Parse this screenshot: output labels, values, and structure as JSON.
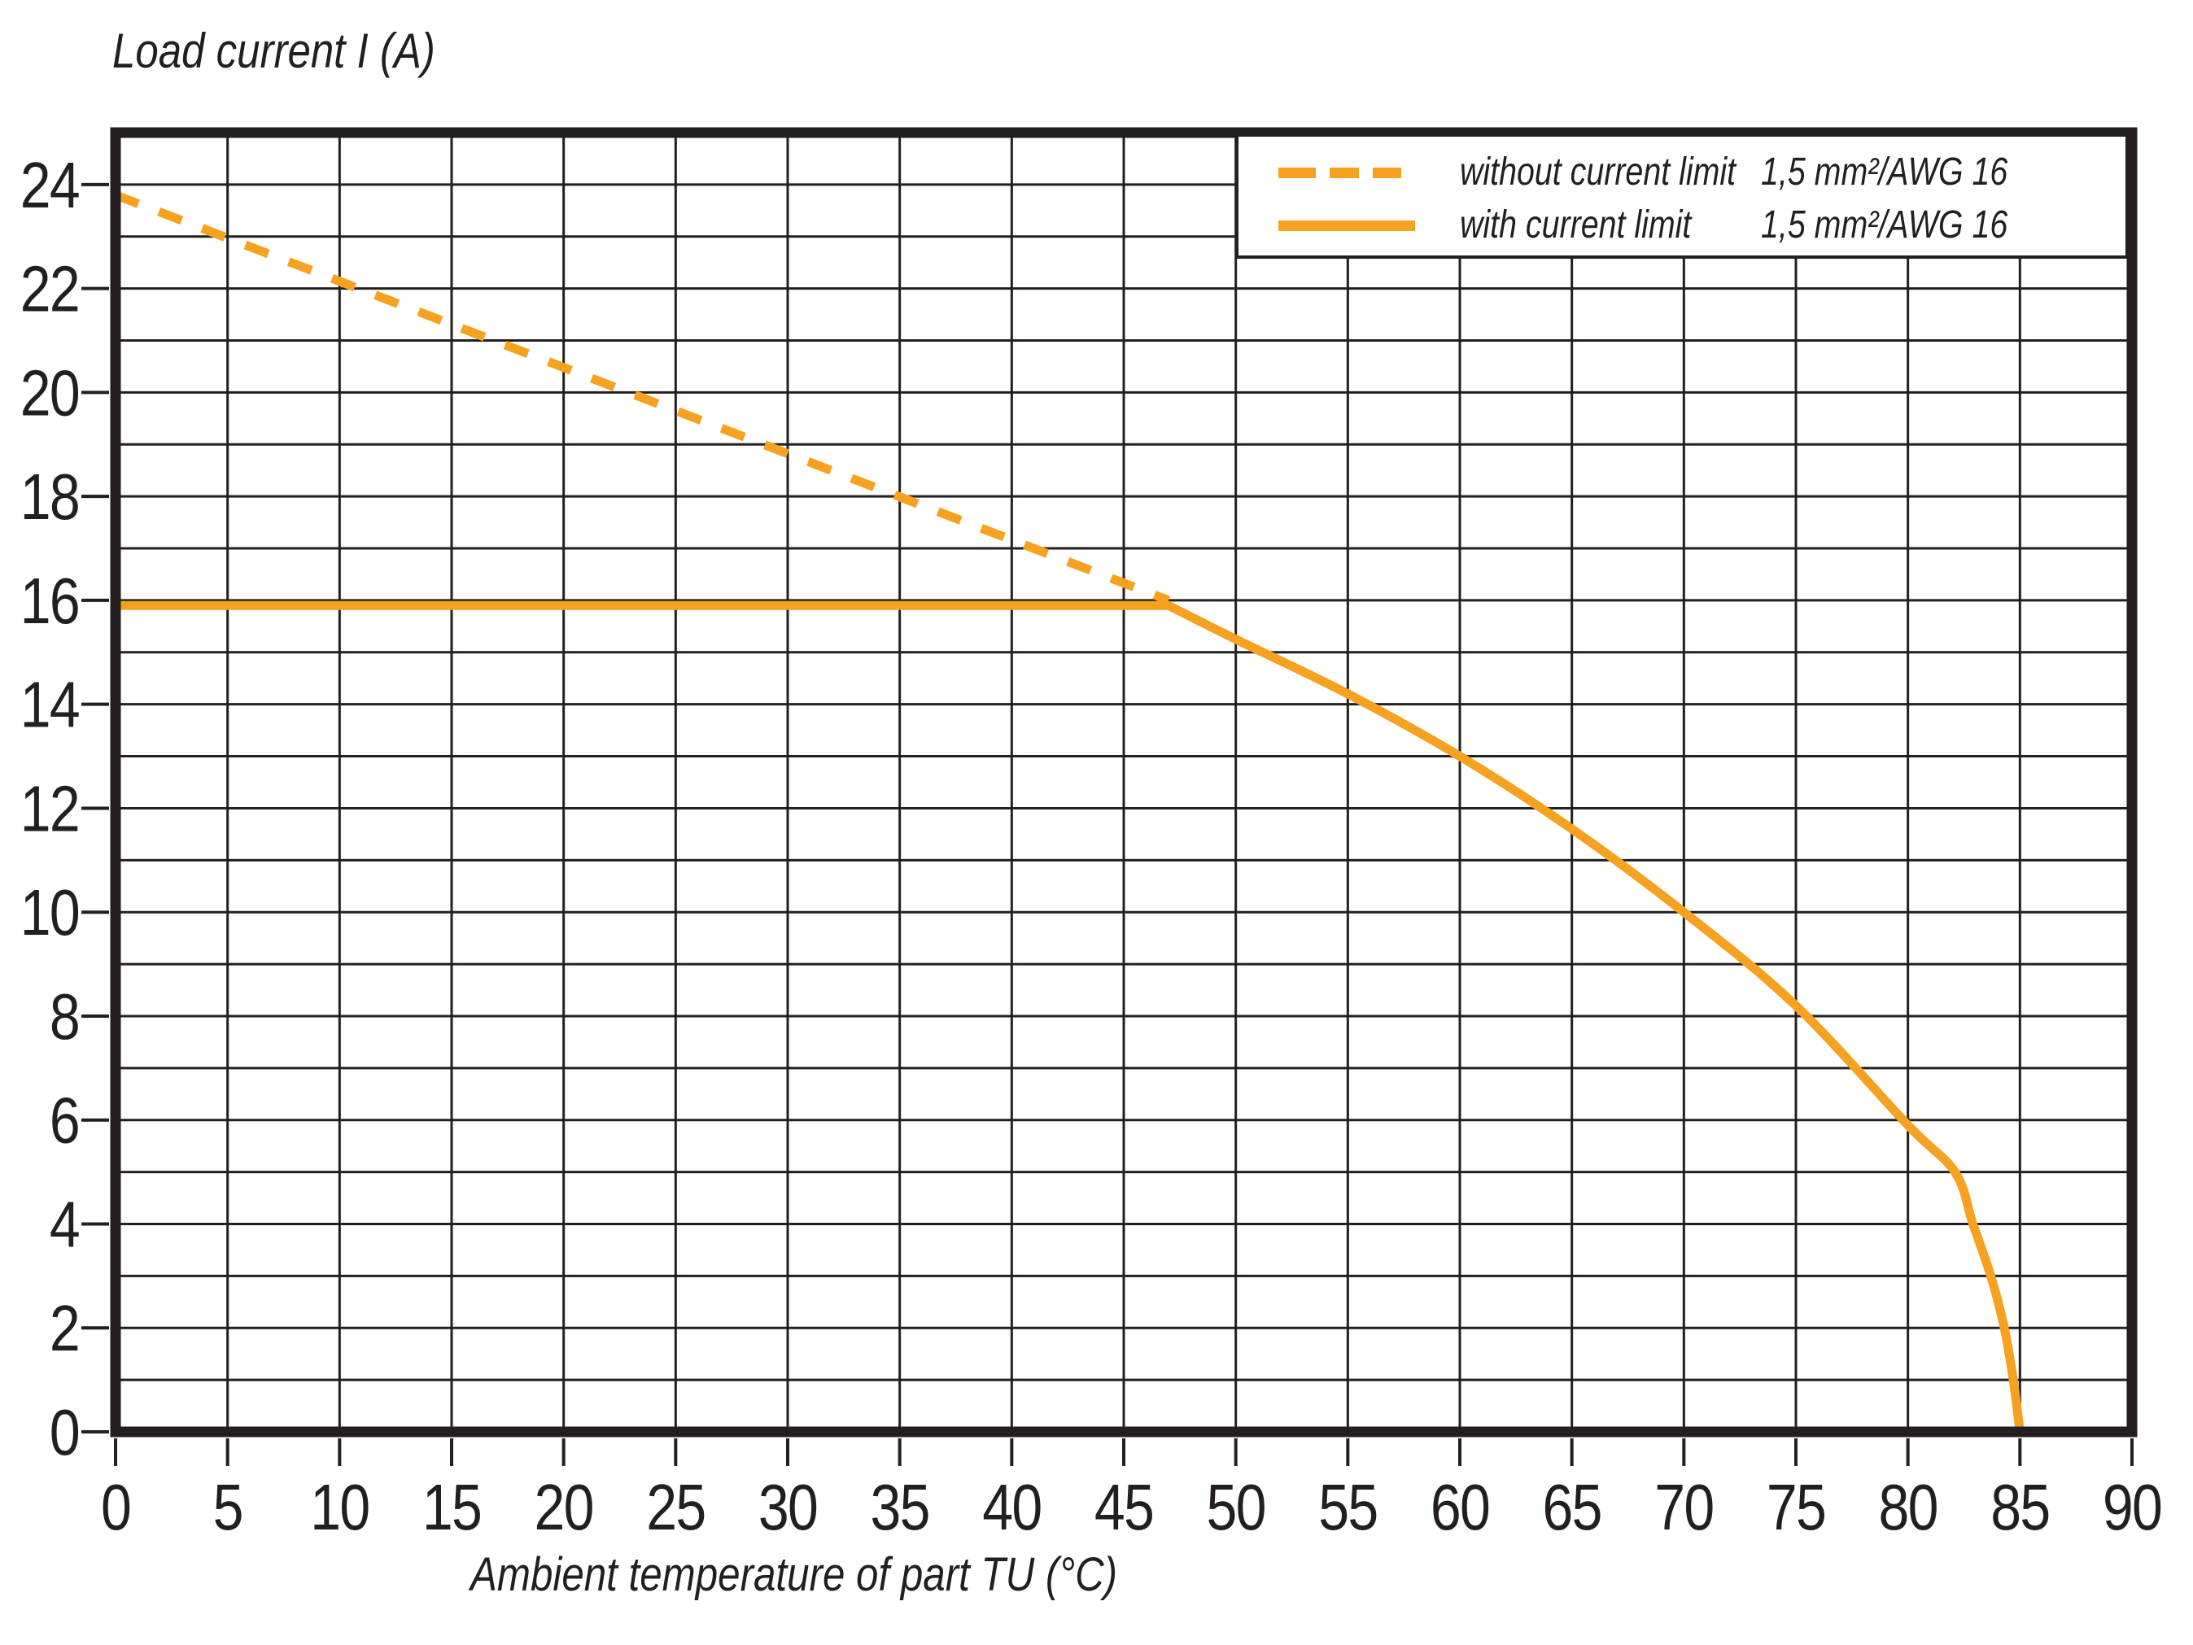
{
  "title": "Load current I (A)",
  "x_axis_title": "Ambient temperature of part TU (°C)",
  "colors": {
    "accent": "#F6A11F",
    "ink": "#231F20",
    "background": "#ffffff"
  },
  "legend": {
    "position": "top-right",
    "items": [
      {
        "label": "without current limit",
        "spec": "1,5 mm²/AWG 16",
        "style": "dashed"
      },
      {
        "label": "with current limit",
        "spec": "1,5 mm²/AWG 16",
        "style": "solid"
      }
    ]
  },
  "chart_data": {
    "type": "line",
    "title": "Load current I (A)",
    "xlabel": "Ambient temperature of part TU (°C)",
    "ylabel": "Load current I (A)",
    "xlim": [
      0,
      90
    ],
    "ylim": [
      0,
      25
    ],
    "x_ticks": [
      0,
      5,
      10,
      15,
      20,
      25,
      30,
      35,
      40,
      45,
      50,
      55,
      60,
      65,
      70,
      75,
      80,
      85,
      90
    ],
    "y_ticks": [
      0,
      2,
      4,
      6,
      8,
      10,
      12,
      14,
      16,
      18,
      20,
      22,
      24
    ],
    "x_grid_step": 5,
    "y_grid_step": 1,
    "grid": true,
    "legend_position": "top-right",
    "line_color": "#F6A11F",
    "series": [
      {
        "name": "without current limit",
        "spec": "1,5 mm²/AWG 16",
        "style": "dashed",
        "color": "#F6A11F",
        "segments": [
          {
            "shape": "line",
            "points": [
              [
                0,
                23.8
              ],
              [
                47,
                16.0
              ]
            ]
          }
        ]
      },
      {
        "name": "with current limit",
        "spec": "1,5 mm²/AWG 16",
        "style": "solid",
        "color": "#F6A11F",
        "segments": [
          {
            "shape": "line",
            "points": [
              [
                0,
                15.9
              ],
              [
                47,
                15.9
              ]
            ]
          },
          {
            "shape": "curve",
            "points": [
              [
                47,
                15.9
              ],
              [
                50,
                15.25
              ],
              [
                55,
                14.2
              ],
              [
                60,
                13.0
              ],
              [
                65,
                11.6
              ],
              [
                70,
                10.0
              ],
              [
                75,
                8.2
              ],
              [
                80,
                5.9
              ],
              [
                82.1,
                5.0
              ],
              [
                82.9,
                4.0
              ],
              [
                83.7,
                3.0
              ],
              [
                84.3,
                2.0
              ],
              [
                84.7,
                1.0
              ],
              [
                85,
                0
              ]
            ]
          }
        ]
      }
    ]
  }
}
